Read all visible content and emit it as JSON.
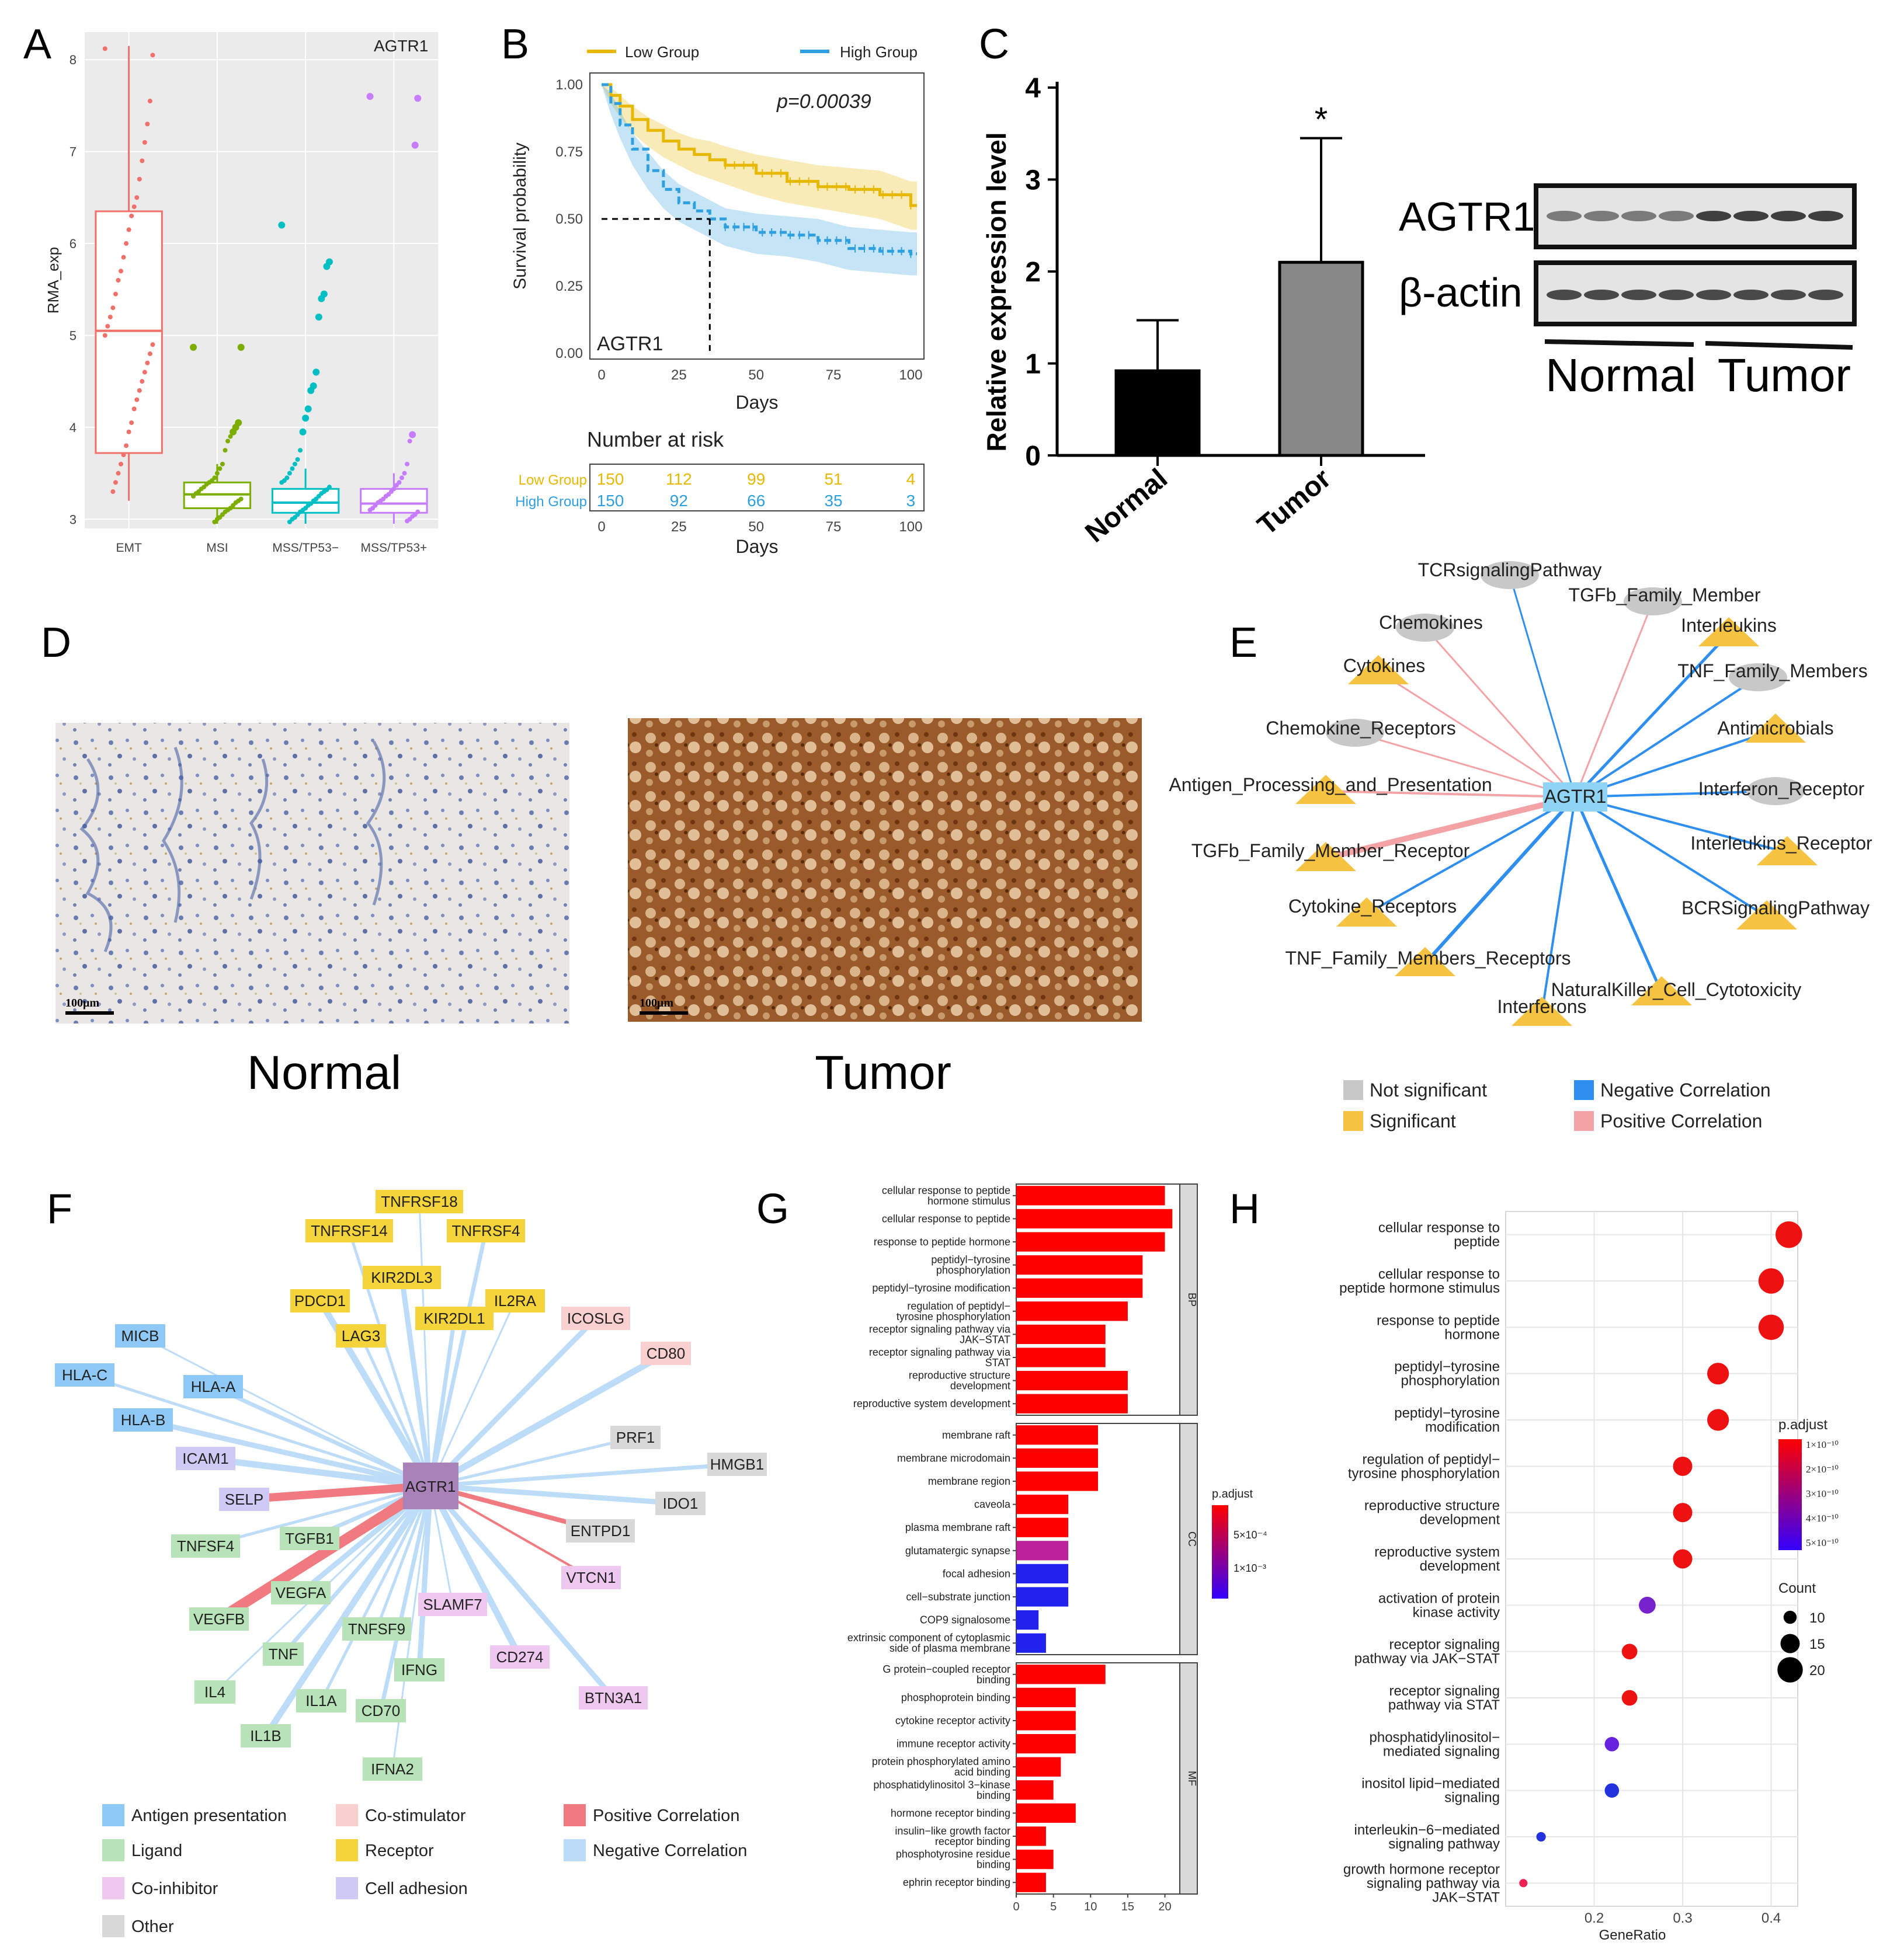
{
  "panels": {
    "a": "A",
    "b": "B",
    "c": "C",
    "d": "D",
    "e": "E",
    "f": "F",
    "g": "G",
    "h": "H"
  },
  "chart_data": [
    {
      "id": "A",
      "type": "box",
      "title": "AGTR1",
      "xlabel": "",
      "ylabel": "RMA_exp",
      "categories": [
        "EMT",
        "MSI",
        "MSS/TP53−",
        "MSS/TP53+"
      ],
      "colors": [
        "#f0706a",
        "#7cae00",
        "#00bfc4",
        "#c77cff"
      ],
      "ylim": [
        2.9,
        8.3
      ],
      "yticks": [
        3,
        4,
        5,
        6,
        7,
        8
      ],
      "boxes": [
        {
          "min": 3.2,
          "q1": 3.72,
          "median": 5.05,
          "q3": 6.35,
          "max": 8.15
        },
        {
          "min": 2.95,
          "q1": 3.12,
          "median": 3.27,
          "q3": 3.4,
          "max": 3.6
        },
        {
          "min": 2.95,
          "q1": 3.07,
          "median": 3.18,
          "q3": 3.33,
          "max": 3.55
        },
        {
          "min": 2.95,
          "q1": 3.07,
          "median": 3.17,
          "q3": 3.33,
          "max": 3.5
        }
      ],
      "points": [
        [
          8.12,
          8.05,
          7.55,
          7.3,
          7.1,
          6.9,
          6.7,
          6.5,
          6.4,
          6.3,
          6.15,
          6.0,
          5.85,
          5.7,
          5.6,
          5.45,
          5.3,
          5.2,
          5.1,
          5.0,
          4.9,
          4.8,
          4.7,
          4.6,
          4.5,
          4.4,
          4.3,
          4.2,
          4.05,
          3.95,
          3.8,
          3.7,
          3.6,
          3.5,
          3.4,
          3.3
        ],
        [
          4.87,
          4.87,
          4.05,
          4.0,
          3.95,
          3.9,
          3.85,
          3.75,
          3.6,
          3.55,
          3.5,
          3.45,
          3.42,
          3.4,
          3.38,
          3.35,
          3.33,
          3.3,
          3.28,
          3.25,
          3.22,
          3.2,
          3.18,
          3.15,
          3.12,
          3.1,
          3.08,
          3.05,
          3.02,
          3.0,
          2.97
        ],
        [
          6.2,
          5.8,
          5.75,
          5.45,
          5.4,
          5.2,
          4.6,
          4.45,
          4.4,
          4.2,
          4.1,
          3.95,
          3.75,
          3.65,
          3.6,
          3.55,
          3.5,
          3.45,
          3.42,
          3.4,
          3.35,
          3.32,
          3.3,
          3.28,
          3.25,
          3.22,
          3.2,
          3.17,
          3.15,
          3.12,
          3.1,
          3.08,
          3.05,
          3.02,
          3.0,
          2.97
        ],
        [
          7.6,
          7.58,
          7.07,
          3.92,
          3.85,
          3.6,
          3.5,
          3.45,
          3.4,
          3.37,
          3.33,
          3.3,
          3.27,
          3.25,
          3.22,
          3.2,
          3.18,
          3.15,
          3.12,
          3.1,
          3.08,
          3.05,
          3.03,
          3.0,
          2.98
        ]
      ]
    },
    {
      "id": "B",
      "type": "line",
      "title": "",
      "xlabel": "Days",
      "ylabel": "Survival probability",
      "annotation": "p=0.00039",
      "label_in_plot": "AGTR1",
      "xlim": [
        0,
        102
      ],
      "ylim": [
        0,
        1
      ],
      "xticks": [
        0,
        25,
        50,
        75,
        100
      ],
      "yticks": [
        "0.00",
        "0.25",
        "0.50",
        "0.75",
        "1.00"
      ],
      "legend": "top",
      "median_line": {
        "y": 0.5,
        "x": 35
      },
      "series": [
        {
          "name": "Low Group",
          "color": "#e7b800",
          "x": [
            0,
            3,
            6,
            10,
            15,
            20,
            25,
            30,
            35,
            40,
            50,
            60,
            70,
            80,
            90,
            100,
            102
          ],
          "y": [
            1.0,
            0.96,
            0.92,
            0.87,
            0.83,
            0.79,
            0.76,
            0.74,
            0.72,
            0.7,
            0.67,
            0.64,
            0.62,
            0.61,
            0.59,
            0.55,
            0.55
          ],
          "ci_low": [
            1.0,
            0.93,
            0.88,
            0.82,
            0.77,
            0.73,
            0.7,
            0.67,
            0.65,
            0.63,
            0.59,
            0.56,
            0.54,
            0.52,
            0.5,
            0.46,
            0.46
          ],
          "ci_high": [
            1.0,
            0.99,
            0.96,
            0.92,
            0.88,
            0.85,
            0.82,
            0.8,
            0.79,
            0.77,
            0.74,
            0.72,
            0.7,
            0.69,
            0.68,
            0.64,
            0.64
          ]
        },
        {
          "name": "High Group",
          "color": "#2e9fdf",
          "x": [
            0,
            3,
            6,
            10,
            15,
            20,
            25,
            30,
            35,
            40,
            50,
            60,
            70,
            80,
            90,
            100,
            102
          ],
          "y": [
            1.0,
            0.93,
            0.85,
            0.76,
            0.68,
            0.61,
            0.56,
            0.53,
            0.5,
            0.47,
            0.45,
            0.44,
            0.42,
            0.39,
            0.38,
            0.37,
            0.37
          ],
          "ci_low": [
            1.0,
            0.89,
            0.8,
            0.7,
            0.61,
            0.54,
            0.49,
            0.46,
            0.43,
            0.4,
            0.37,
            0.36,
            0.34,
            0.31,
            0.3,
            0.29,
            0.29
          ],
          "ci_high": [
            1.0,
            0.97,
            0.9,
            0.82,
            0.75,
            0.68,
            0.63,
            0.6,
            0.57,
            0.54,
            0.52,
            0.51,
            0.5,
            0.47,
            0.46,
            0.45,
            0.45
          ]
        }
      ],
      "risk_table": {
        "title": "Number at risk",
        "xlabel": "Days",
        "times": [
          0,
          25,
          50,
          75,
          100
        ],
        "rows": [
          {
            "name": "Low Group",
            "color": "#e7b800",
            "counts": [
              "150",
              "112",
              "99",
              "51",
              "4"
            ]
          },
          {
            "name": "High Group",
            "color": "#2e9fdf",
            "counts": [
              "150",
              "92",
              "66",
              "35",
              "3"
            ]
          }
        ]
      }
    },
    {
      "id": "C",
      "type": "bar",
      "title": "",
      "xlabel": "",
      "ylabel": "Relative expression level",
      "categories": [
        "Normal",
        "Tumor"
      ],
      "values": [
        0.92,
        2.1
      ],
      "errors": [
        0.55,
        1.35
      ],
      "colors": [
        "#000000",
        "#888888"
      ],
      "ylim": [
        0,
        4
      ],
      "yticks": [
        0,
        1,
        2,
        3,
        4
      ],
      "significance": "*"
    },
    {
      "id": "G",
      "type": "bar",
      "orientation": "horizontal",
      "title": "",
      "xlabel": "",
      "ylabel": "",
      "xlim": [
        0,
        22
      ],
      "xticks": [
        0,
        5,
        10,
        15,
        20
      ],
      "legend": {
        "title": "p.adjust",
        "labels": [
          "5×10⁻⁴",
          "1×10⁻³"
        ],
        "low_color": "#ff0000",
        "high_color": "#3300ff"
      },
      "facets": [
        {
          "name": "BP",
          "categories": [
            "cellular response to peptide\nhormone stimulus",
            "cellular response to peptide",
            "response to peptide hormone",
            "peptidyl−tyrosine\nphosphorylation",
            "peptidyl−tyrosine modification",
            "regulation of peptidyl−\ntyrosine phosphorylation",
            "receptor signaling pathway via\nJAK−STAT",
            "receptor signaling pathway via\nSTAT",
            "reproductive structure\ndevelopment",
            "reproductive system development"
          ],
          "values": [
            20,
            21,
            20,
            17,
            17,
            15,
            12,
            12,
            15,
            15
          ],
          "colors": [
            "#ff0000",
            "#ff0000",
            "#ff0000",
            "#ff0000",
            "#ff0000",
            "#ff0000",
            "#ff0000",
            "#ff0000",
            "#ff0000",
            "#ff0000"
          ]
        },
        {
          "name": "CC",
          "categories": [
            "membrane raft",
            "membrane microdomain",
            "membrane region",
            "caveola",
            "plasma membrane raft",
            "glutamatergic synapse",
            "focal adhesion",
            "cell−substrate junction",
            "COP9 signalosome",
            "extrinsic component of cytoplasmic\nside of plasma membrane"
          ],
          "values": [
            11,
            11,
            11,
            7,
            7,
            7,
            7,
            7,
            3,
            4
          ],
          "colors": [
            "#ff0000",
            "#ff0000",
            "#ff0000",
            "#ff0000",
            "#ff0000",
            "#bb2299",
            "#2222ee",
            "#2222ee",
            "#2222ee",
            "#2222ee"
          ]
        },
        {
          "name": "MF",
          "categories": [
            "G protein−coupled receptor\nbinding",
            "phosphoprotein binding",
            "cytokine receptor activity",
            "immune receptor activity",
            "protein phosphorylated amino\nacid binding",
            "phosphatidylinositol 3−kinase\nbinding",
            "hormone receptor binding",
            "insulin−like growth factor\nreceptor binding",
            "phosphotyrosine residue\nbinding",
            "ephrin receptor binding"
          ],
          "values": [
            12,
            8,
            8,
            8,
            6,
            5,
            8,
            4,
            5,
            4
          ],
          "colors": [
            "#ff0000",
            "#ff0000",
            "#ff0000",
            "#ff0000",
            "#ff0000",
            "#ff0000",
            "#ff0000",
            "#ff0000",
            "#ff0000",
            "#ff0000"
          ]
        }
      ]
    },
    {
      "id": "H",
      "type": "scatter",
      "title": "",
      "xlabel": "GeneRatio",
      "ylabel": "",
      "xlim": [
        0.1,
        0.43
      ],
      "xticks": [
        0.2,
        0.3,
        0.4
      ],
      "legend": {
        "color_title": "p.adjust",
        "color_labels": [
          "1×10⁻¹⁰",
          "2×10⁻¹⁰",
          "3×10⁻¹⁰",
          "4×10⁻¹⁰",
          "5×10⁻¹⁰"
        ],
        "size_title": "Count",
        "size_labels": [
          "10",
          "15",
          "20"
        ]
      },
      "categories": [
        "cellular response to\npeptide",
        "cellular response to\npeptide hormone stimulus",
        "response to peptide\nhormone",
        "peptidyl−tyrosine\nphosphorylation",
        "peptidyl−tyrosine\nmodification",
        "regulation of peptidyl−\ntyrosine phosphorylation",
        "reproductive structure\ndevelopment",
        "reproductive system\ndevelopment",
        "activation of protein\nkinase activity",
        "receptor signaling\npathway via JAK−STAT",
        "receptor signaling\npathway via STAT",
        "phosphatidylinositol−\nmediated signaling",
        "inositol lipid−mediated\nsignaling",
        "interleukin−6−mediated\nsignaling pathway",
        "growth hormone receptor\nsignaling pathway via\nJAK−STAT"
      ],
      "x": [
        0.42,
        0.4,
        0.4,
        0.34,
        0.34,
        0.3,
        0.3,
        0.3,
        0.26,
        0.24,
        0.24,
        0.22,
        0.22,
        0.14,
        0.12
      ],
      "count": [
        21,
        20,
        20,
        17,
        17,
        15,
        15,
        15,
        13,
        12,
        12,
        11,
        11,
        7,
        6
      ],
      "colors": [
        "#ee1111",
        "#ee1111",
        "#ee1111",
        "#ee1111",
        "#ee1111",
        "#ee1111",
        "#ee1111",
        "#ee1111",
        "#7722cc",
        "#ee1111",
        "#ee1111",
        "#6622dd",
        "#2233dd",
        "#2233dd",
        "#ee2255"
      ]
    }
  ],
  "western": {
    "rows": [
      "AGTR1",
      "β-actin"
    ],
    "groups": [
      "Normal",
      "Tumor"
    ]
  },
  "ihc": {
    "scale_bar": "100μm",
    "captions": [
      "Normal",
      "Tumor"
    ]
  },
  "network_e": {
    "center": "AGTR1",
    "nodes": [
      {
        "label": "TCRsignalingPathway",
        "shape": "ellipse",
        "edge": "neg"
      },
      {
        "label": "TGFb_Family_Member",
        "shape": "ellipse",
        "edge": "pos"
      },
      {
        "label": "Interleukins",
        "shape": "triangle",
        "edge": "neg"
      },
      {
        "label": "TNF_Family_Members",
        "shape": "ellipse",
        "edge": "neg"
      },
      {
        "label": "Antimicrobials",
        "shape": "triangle",
        "edge": "neg"
      },
      {
        "label": "Interferon_Receptor",
        "shape": "ellipse",
        "edge": "neg"
      },
      {
        "label": "Interleukins_Receptor",
        "shape": "triangle",
        "edge": "neg"
      },
      {
        "label": "BCRSignalingPathway",
        "shape": "triangle",
        "edge": "neg"
      },
      {
        "label": "NaturalKiller_Cell_Cytotoxicity",
        "shape": "triangle",
        "edge": "neg"
      },
      {
        "label": "Interferons",
        "shape": "triangle",
        "edge": "neg"
      },
      {
        "label": "TNF_Family_Members_Receptors",
        "shape": "triangle",
        "edge": "neg"
      },
      {
        "label": "Cytokine_Receptors",
        "shape": "triangle",
        "edge": "neg"
      },
      {
        "label": "TGFb_Family_Member_Receptor",
        "shape": "triangle",
        "edge": "pos"
      },
      {
        "label": "Antigen_Processing_and_Presentation",
        "shape": "triangle",
        "edge": "pos"
      },
      {
        "label": "Chemokine_Receptors",
        "shape": "ellipse",
        "edge": "pos"
      },
      {
        "label": "Cytokines",
        "shape": "triangle",
        "edge": "pos"
      },
      {
        "label": "Chemokines",
        "shape": "ellipse",
        "edge": "pos"
      }
    ],
    "legend": [
      {
        "label": "Not significant",
        "color": "#c8c8c8"
      },
      {
        "label": "Significant",
        "color": "#f5c242"
      },
      {
        "label": "Negative Correlation",
        "color": "#2e8ff0"
      },
      {
        "label": "Positive Correlation",
        "color": "#f3a3a6"
      }
    ]
  },
  "network_f": {
    "center": "AGTR1",
    "nodes": [
      {
        "label": "TNFRSF18",
        "cat": "receptor",
        "edge": "neg"
      },
      {
        "label": "TNFRSF14",
        "cat": "receptor",
        "edge": "neg"
      },
      {
        "label": "TNFRSF4",
        "cat": "receptor",
        "edge": "neg"
      },
      {
        "label": "KIR2DL3",
        "cat": "receptor",
        "edge": "neg"
      },
      {
        "label": "PDCD1",
        "cat": "receptor",
        "edge": "neg"
      },
      {
        "label": "IL2RA",
        "cat": "receptor",
        "edge": "neg"
      },
      {
        "label": "LAG3",
        "cat": "receptor",
        "edge": "neg"
      },
      {
        "label": "KIR2DL1",
        "cat": "receptor",
        "edge": "neg"
      },
      {
        "label": "ICOSLG",
        "cat": "costim",
        "edge": "neg"
      },
      {
        "label": "CD80",
        "cat": "costim",
        "edge": "neg"
      },
      {
        "label": "MICB",
        "cat": "antigen",
        "edge": "neg"
      },
      {
        "label": "HLA-C",
        "cat": "antigen",
        "edge": "neg"
      },
      {
        "label": "HLA-A",
        "cat": "antigen",
        "edge": "neg"
      },
      {
        "label": "HLA-B",
        "cat": "antigen",
        "edge": "neg"
      },
      {
        "label": "ICAM1",
        "cat": "adhesion",
        "edge": "neg"
      },
      {
        "label": "SELP",
        "cat": "adhesion",
        "edge": "pos"
      },
      {
        "label": "PRF1",
        "cat": "other",
        "edge": "neg"
      },
      {
        "label": "HMGB1",
        "cat": "other",
        "edge": "neg"
      },
      {
        "label": "IDO1",
        "cat": "other",
        "edge": "neg"
      },
      {
        "label": "ENTPD1",
        "cat": "other",
        "edge": "pos"
      },
      {
        "label": "VTCN1",
        "cat": "coinhib",
        "edge": "pos"
      },
      {
        "label": "TNFSF4",
        "cat": "ligand",
        "edge": "neg"
      },
      {
        "label": "TGFB1",
        "cat": "ligand",
        "edge": "neg"
      },
      {
        "label": "VEGFA",
        "cat": "ligand",
        "edge": "neg"
      },
      {
        "label": "VEGFB",
        "cat": "ligand",
        "edge": "pos"
      },
      {
        "label": "SLAMF7",
        "cat": "coinhib",
        "edge": "neg"
      },
      {
        "label": "TNFSF9",
        "cat": "ligand",
        "edge": "neg"
      },
      {
        "label": "TNF",
        "cat": "ligand",
        "edge": "neg"
      },
      {
        "label": "IFNG",
        "cat": "ligand",
        "edge": "neg"
      },
      {
        "label": "CD274",
        "cat": "coinhib",
        "edge": "neg"
      },
      {
        "label": "IL4",
        "cat": "ligand",
        "edge": "neg"
      },
      {
        "label": "IL1A",
        "cat": "ligand",
        "edge": "neg"
      },
      {
        "label": "CD70",
        "cat": "ligand",
        "edge": "neg"
      },
      {
        "label": "BTN3A1",
        "cat": "coinhib",
        "edge": "neg"
      },
      {
        "label": "IL1B",
        "cat": "ligand",
        "edge": "neg"
      },
      {
        "label": "IFNA2",
        "cat": "ligand",
        "edge": "neg"
      }
    ],
    "legend": [
      {
        "label": "Antigen presentation",
        "color": "#8ec8f6"
      },
      {
        "label": "Co-stimulator",
        "color": "#f9cfd0"
      },
      {
        "label": "Positive Correlation",
        "color": "#f07a7f"
      },
      {
        "label": "Ligand",
        "color": "#b8e2b8"
      },
      {
        "label": "Receptor",
        "color": "#f5d33a"
      },
      {
        "label": "Negative Correlation",
        "color": "#bcdcf7"
      },
      {
        "label": "Co-inhibitor",
        "color": "#eec8ee"
      },
      {
        "label": "Cell adhesion",
        "color": "#cfcaf5"
      },
      {
        "label": "Other",
        "color": "#d8d8d8"
      }
    ]
  }
}
